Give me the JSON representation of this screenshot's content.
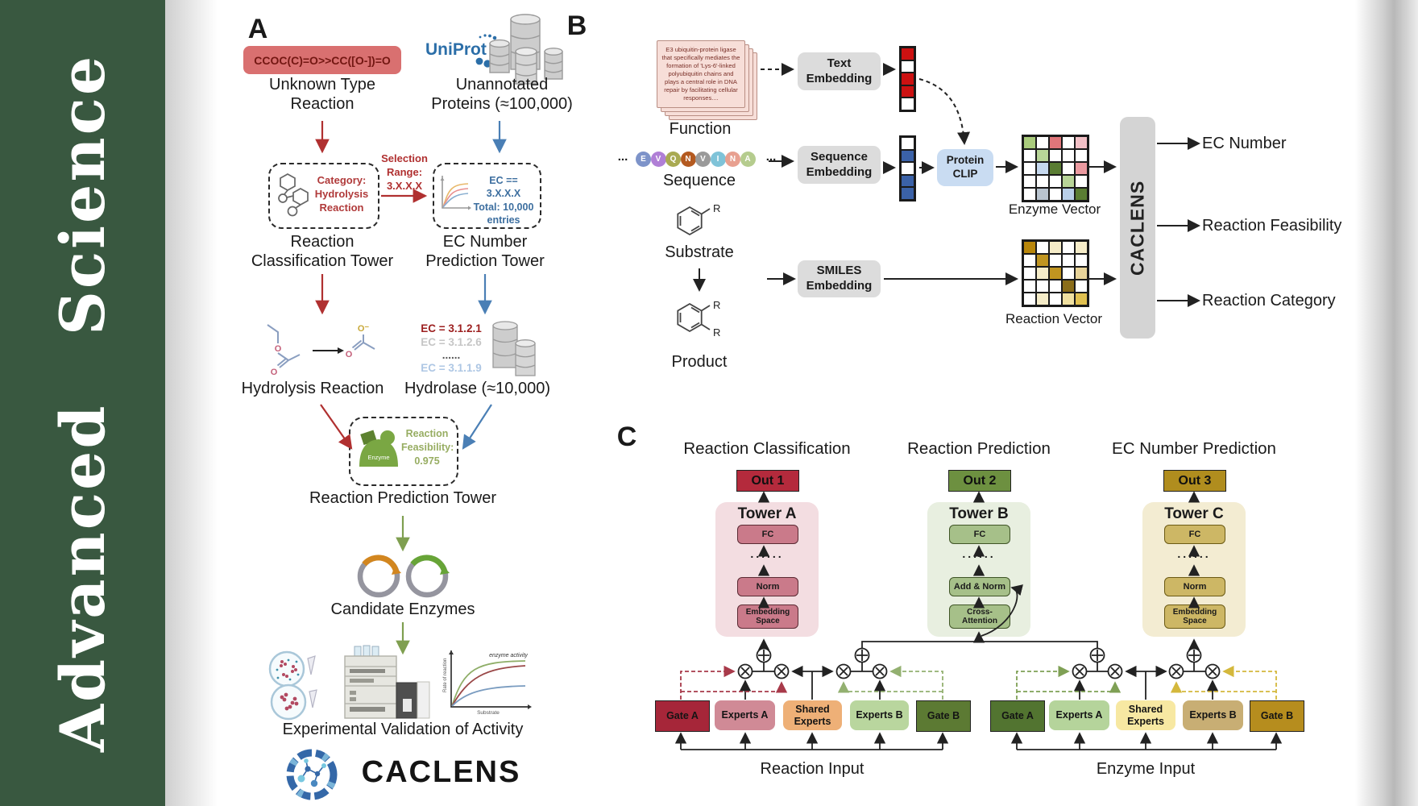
{
  "banner": {
    "text": "Advanced  Science",
    "bg": "#395840",
    "fg": "#ffffff"
  },
  "panel_a": {
    "label": "A",
    "smiles_box": {
      "text": "CCOC(C)=O>>CC([O-])=O",
      "bg": "#d97070",
      "fg": "#731712"
    },
    "unknown_reaction_label": "Unknown Type\nReaction",
    "uniprot_logo_text": "UniProt",
    "uniprot_color": "#2b6ea8",
    "unannotated_label": "Unannotated\nProteins (≈100,000)",
    "selection_label": "Selection\nRange:\n3.X.X.X",
    "selection_color": "#b03030",
    "classification_box": {
      "text": "Category:\nHydrolysis\nReaction",
      "fg": "#b03a3a"
    },
    "ec_box": {
      "text": "EC == 3.X.X.X\nTotal: 10,000\nentries",
      "fg": "#3c6e9f"
    },
    "classification_tower_label": "Reaction\nClassification Tower",
    "ec_tower_label": "EC Number\nPrediction Tower",
    "hydrolysis_label": "Hydrolysis Reaction",
    "ec_list": [
      {
        "text": "EC = 3.1.2.1",
        "color": "#9c1f1f"
      },
      {
        "text": "EC = 3.1.2.6",
        "color": "#c6c6c6"
      },
      {
        "text": "......",
        "color": "#555555"
      },
      {
        "text": "EC = 3.1.1.9",
        "color": "#aec7e4"
      }
    ],
    "hydrolase_label": "Hydrolase (≈10,000)",
    "enzyme_icon_label": "Enzyme",
    "feasibility_text": "Reaction\nFeasibility:\n0.975",
    "feasibility_color": "#97ad62",
    "prediction_tower_label": "Reaction Prediction Tower",
    "candidate_label": "Candidate Enzymes",
    "kinetics_graph": {
      "ylabel": "Rate of reaction",
      "xlabel": "Substrate",
      "annotation": "enzyme activity"
    },
    "validation_label": "Experimental Validation of Activity",
    "logo_text": "CACLENS"
  },
  "panel_b": {
    "label": "B",
    "function_card_text": "E3 ubiquitin-protein ligase\nthat specifically mediates the\nformation of 'Lys-6'-linked\npolyubiquitin chains and\nplays a central role in DNA\nrepair by facilitating cellular\nresponses....",
    "function_label": "Function",
    "text_embedding_label": "Text\nEmbedding",
    "sequence_label": "Sequence",
    "sequence_embedding_label": "Sequence\nEmbedding",
    "ellipsis": "...",
    "sequence_residues": [
      {
        "l": "E",
        "c": "#7d93c9"
      },
      {
        "l": "V",
        "c": "#b07fd6"
      },
      {
        "l": "Q",
        "c": "#a9aa52"
      },
      {
        "l": "N",
        "c": "#b45a20"
      },
      {
        "l": "V",
        "c": "#9a9a9a"
      },
      {
        "l": "I",
        "c": "#7fc3d8"
      },
      {
        "l": "N",
        "c": "#e8a090"
      },
      {
        "l": "A",
        "c": "#b5cc8e"
      }
    ],
    "text_vector": [
      "#cc1111",
      "#ffffff",
      "#cc1111",
      "#cc1111",
      "#ffffff"
    ],
    "seq_vector": [
      "#ffffff",
      "#3b62a8",
      "#ffffff",
      "#3b62a8",
      "#3b62a8"
    ],
    "protein_clip_label": "Protein\nCLIP",
    "protein_clip_bg": "#c9dcf2",
    "enzyme_vector_label": "Enzyme Vector",
    "enzyme_vector_cells": [
      [
        "#a9cb7c",
        "#ffffff",
        "#e0767a",
        "#ffffff",
        "#f2c0c6"
      ],
      [
        "#ffffff",
        "#b8d598",
        "#ffffff",
        "#ffffff",
        "#ffffff"
      ],
      [
        "#ffffff",
        "#c6d9ef",
        "#5a7d33",
        "#ffffff",
        "#eb9aa0"
      ],
      [
        "#ffffff",
        "#ffffff",
        "#ffffff",
        "#b8d598",
        "#ffffff"
      ],
      [
        "#ffffff",
        "#b9c4cf",
        "#ffffff",
        "#b9cfe8",
        "#5a7d33"
      ]
    ],
    "substrate_label": "Substrate",
    "product_label": "Product",
    "r_group": "R",
    "smiles_embedding_label": "SMILES\nEmbedding",
    "reaction_vector_label": "Reaction Vector",
    "reaction_vector_cells": [
      [
        "#b8860b",
        "#ffffff",
        "#f5ecc8",
        "#ffffff",
        "#f5ecc8"
      ],
      [
        "#ffffff",
        "#c09520",
        "#ffffff",
        "#ffffff",
        "#ffffff"
      ],
      [
        "#ffffff",
        "#f5ecc8",
        "#c09520",
        "#ffffff",
        "#e8d49a"
      ],
      [
        "#ffffff",
        "#ffffff",
        "#ffffff",
        "#8a6d1a",
        "#ffffff"
      ],
      [
        "#ffffff",
        "#f5ecc8",
        "#ffffff",
        "#f0e0a0",
        "#e0c050"
      ]
    ],
    "caclens_bar_label": "CACLENS",
    "outputs": [
      "EC Number",
      "Reaction Feasibility",
      "Reaction Category"
    ]
  },
  "panel_c": {
    "label": "C",
    "headers": [
      "Reaction Classification",
      "Reaction Prediction",
      "EC Number Prediction"
    ],
    "towers": [
      {
        "out": "Out 1",
        "out_bg": "#b42a3c",
        "name": "Tower A",
        "container_bg": "#f3dde1",
        "box_bg": "#ca7a8a",
        "box_border": "#5a2a33",
        "dots": "......",
        "boxes": [
          "FC",
          "Norm",
          "Embedding\nSpace"
        ]
      },
      {
        "out": "Out 2",
        "out_bg": "#6d9040",
        "name": "Tower B",
        "container_bg": "#e8efe0",
        "box_bg": "#a6c089",
        "box_border": "#3f5426",
        "dots": "......",
        "boxes": [
          "FC",
          "Add & Norm",
          "Cross-\nAttention"
        ]
      },
      {
        "out": "Out 3",
        "out_bg": "#b08d1e",
        "name": "Tower C",
        "container_bg": "#f3ecd2",
        "box_bg": "#cdb765",
        "box_border": "#6b5a14",
        "dots": "......",
        "boxes": [
          "FC",
          "Norm",
          "Embedding\nSpace"
        ]
      }
    ],
    "moe_left": {
      "boxes": [
        {
          "label": "Gate A",
          "bg": "#a62639"
        },
        {
          "label": "Experts A",
          "bg": "#d08a96"
        },
        {
          "label": "Shared\nExperts",
          "bg": "#eeb077"
        },
        {
          "label": "Experts B",
          "bg": "#b9d69e"
        },
        {
          "label": "Gate B",
          "bg": "#5c7a33"
        }
      ],
      "input_label": "Reaction Input"
    },
    "moe_right": {
      "boxes": [
        {
          "label": "Gate A",
          "bg": "#527430"
        },
        {
          "label": "Experts A",
          "bg": "#b5d49b"
        },
        {
          "label": "Shared\nExperts",
          "bg": "#f7e8a2"
        },
        {
          "label": "Experts B",
          "bg": "#c8ae74"
        },
        {
          "label": "Gate B",
          "bg": "#b68d1e"
        }
      ],
      "input_label": "Enzyme Input"
    }
  }
}
